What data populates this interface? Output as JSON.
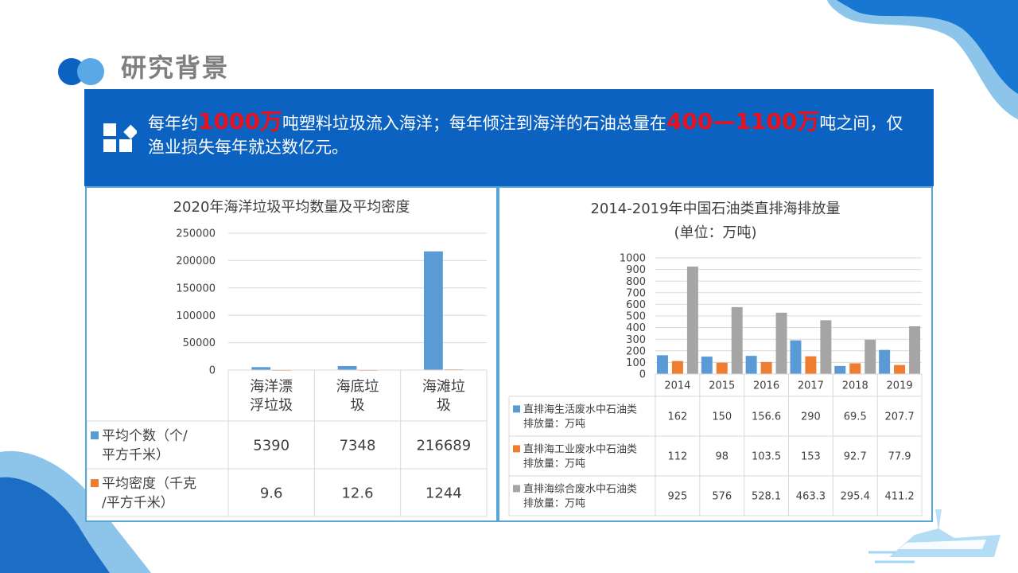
{
  "page": {
    "title": "研究背景"
  },
  "banner": {
    "t1": "每年约",
    "h1": "1000万",
    "t2": "吨塑料垃圾流入海洋；每年倾注到海洋的石油总量在",
    "h2": "400—1100万",
    "t3": "吨之间，仅渔业损失每年就达数亿元。"
  },
  "colors": {
    "blue": "#5b9bd5",
    "orange": "#ed7d31",
    "gray": "#a5a5a5",
    "banner": "#0b62c1",
    "highlight": "#e8101c"
  },
  "chart_data": [
    {
      "type": "bar",
      "title": "2020年海洋垃圾平均数量及平均密度",
      "categories": [
        "海洋漂浮垃圾",
        "海底垃圾",
        "海滩垃圾"
      ],
      "category_lines": [
        [
          "海洋漂",
          "浮垃圾"
        ],
        [
          "海底垃",
          "圾"
        ],
        [
          "海滩垃",
          "圾"
        ]
      ],
      "series": [
        {
          "name": "平均个数（个/平方千米）",
          "name_lines": [
            "平均个数（个/",
            "平方千米）"
          ],
          "values": [
            5390,
            7348,
            216689
          ],
          "display": [
            "5390",
            "7348",
            "216689"
          ]
        },
        {
          "name": "平均密度（千克/平方千米）",
          "name_lines": [
            "平均密度（千克",
            "/平方千米）"
          ],
          "values": [
            9.6,
            12.6,
            1244
          ],
          "display": [
            "9.6",
            "12.6",
            "1244"
          ]
        }
      ],
      "yticks": [
        "0",
        "50000",
        "100000",
        "150000",
        "200000",
        "250000"
      ],
      "ylim": [
        0,
        250000
      ],
      "grid": true,
      "legend": "data-table"
    },
    {
      "type": "bar",
      "title": "2014-2019年中国石油类直排海排放量",
      "subtitle": "(单位：万吨)",
      "categories": [
        "2014",
        "2015",
        "2016",
        "2017",
        "2018",
        "2019"
      ],
      "series": [
        {
          "name": "直排海生活废水中石油类排放量：万吨",
          "name_lines": [
            "直排海生活废水中石油类",
            "排放量：万吨"
          ],
          "values": [
            162,
            150,
            156.6,
            290,
            69.5,
            207.7
          ],
          "display": [
            "162",
            "150",
            "156.6",
            "290",
            "69.5",
            "207.7"
          ]
        },
        {
          "name": "直排海工业废水中石油类排放量：万吨",
          "name_lines": [
            "直排海工业废水中石油类",
            "排放量：万吨"
          ],
          "values": [
            112,
            98,
            103.5,
            153,
            92.7,
            77.9
          ],
          "display": [
            "112",
            "98",
            "103.5",
            "153",
            "92.7",
            "77.9"
          ]
        },
        {
          "name": "直排海综合废水中石油类排放量：万吨",
          "name_lines": [
            "直排海综合废水中石油类",
            "排放量：万吨"
          ],
          "values": [
            925,
            576,
            528.1,
            463.3,
            295.4,
            411.2
          ],
          "display": [
            "925",
            "576",
            "528.1",
            "463.3",
            "295.4",
            "411.2"
          ]
        }
      ],
      "yticks": [
        "0",
        "100",
        "200",
        "300",
        "400",
        "500",
        "600",
        "700",
        "800",
        "900",
        "1000"
      ],
      "ylim": [
        0,
        1000
      ],
      "grid": true,
      "legend": "data-table"
    }
  ]
}
